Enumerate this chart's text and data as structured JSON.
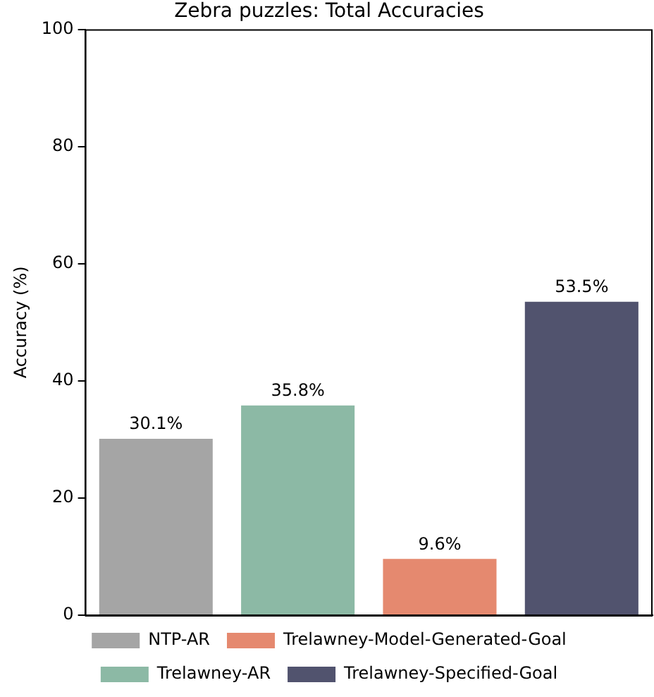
{
  "chart_data": {
    "type": "bar",
    "title": "Zebra puzzles: Total Accuracies",
    "ylabel": "Accuracy (%)",
    "categories": [
      null,
      null,
      null,
      null
    ],
    "series": [
      {
        "name": "NTP-AR",
        "color": "#a5a5a5",
        "values": [
          30.1,
          null,
          null,
          null
        ],
        "value_labels": [
          "30.1%",
          null,
          null,
          null
        ]
      },
      {
        "name": "Trelawney-AR",
        "color": "#8cb9a5",
        "values": [
          null,
          35.8,
          null,
          null
        ],
        "value_labels": [
          null,
          "35.8%",
          null,
          null
        ]
      },
      {
        "name": "Trelawney-Model-Generated-Goal",
        "color": "#e5896f",
        "values": [
          null,
          null,
          9.6,
          null
        ],
        "value_labels": [
          null,
          null,
          "9.6%",
          null
        ]
      },
      {
        "name": "Trelawney-Specified-Goal",
        "color": "#51536e",
        "values": [
          null,
          null,
          null,
          53.5
        ],
        "value_labels": [
          null,
          null,
          null,
          "53.5%"
        ]
      }
    ],
    "ylim": [
      0,
      100
    ],
    "yticks": [
      0,
      20,
      40,
      60,
      80,
      100
    ],
    "grid": false,
    "legend": "bottom"
  }
}
